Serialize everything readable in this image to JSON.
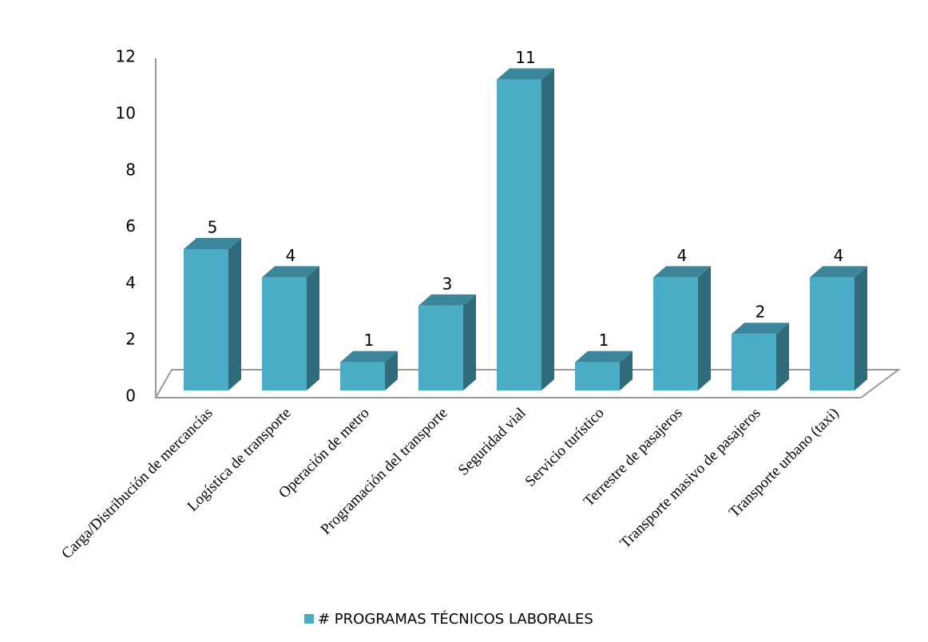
{
  "chart_data": {
    "type": "bar3d",
    "categories": [
      "Carga/Distribución de mercancías",
      "Logística de transporte",
      "Operación de metro",
      "Programación del transporte",
      "Seguridad vial",
      "Servicio turístico",
      "Terrestre de pasajeros",
      "Transporte masivo de pasajeros",
      "Transporte urbano (taxi)"
    ],
    "series": [
      {
        "name": "# PROGRAMAS TÉCNICOS LABORALES",
        "color": "#4bacc6",
        "values": [
          5,
          4,
          1,
          3,
          11,
          1,
          4,
          2,
          4
        ]
      }
    ],
    "ylim": [
      0,
      12
    ],
    "yticks": [
      0,
      2,
      4,
      6,
      8,
      10,
      12
    ],
    "legend": "bottom"
  }
}
